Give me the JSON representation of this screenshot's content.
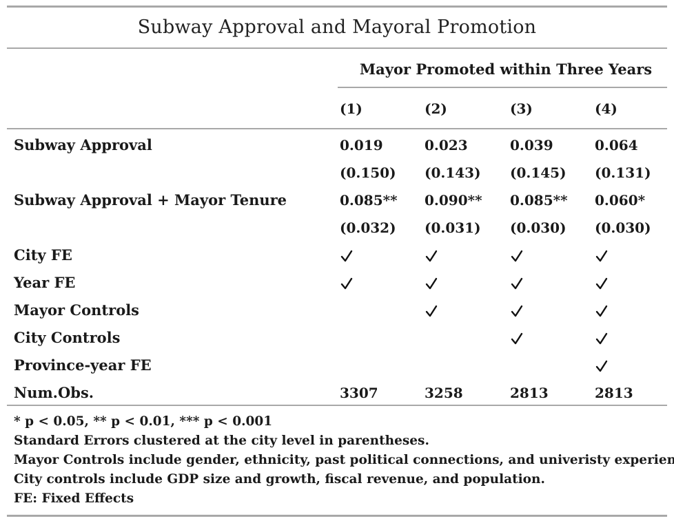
{
  "table": {
    "title": "Subway Approval and Mayoral Promotion",
    "dependent_header": "Mayor Promoted within Three Years",
    "columns": [
      "(1)",
      "(2)",
      "(3)",
      "(4)"
    ],
    "rows": [
      {
        "label": "Subway Approval",
        "values": [
          "0.019",
          "0.023",
          "0.039",
          "0.064"
        ]
      },
      {
        "label": "",
        "values": [
          "(0.150)",
          "(0.143)",
          "(0.145)",
          "(0.131)"
        ]
      },
      {
        "label": "Subway Approval + Mayor Tenure",
        "values": [
          "0.085**",
          "0.090**",
          "0.085**",
          "0.060*"
        ]
      },
      {
        "label": "",
        "values": [
          "(0.032)",
          "(0.031)",
          "(0.030)",
          "(0.030)"
        ]
      },
      {
        "label": "City FE",
        "checks": [
          true,
          true,
          true,
          true
        ]
      },
      {
        "label": "Year FE",
        "checks": [
          true,
          true,
          true,
          true
        ]
      },
      {
        "label": "Mayor Controls",
        "checks": [
          false,
          true,
          true,
          true
        ]
      },
      {
        "label": "City Controls",
        "checks": [
          false,
          false,
          true,
          true
        ]
      },
      {
        "label": "Province-year FE",
        "checks": [
          false,
          false,
          false,
          true
        ]
      },
      {
        "label": "Num.Obs.",
        "values": [
          "3307",
          "3258",
          "2813",
          "2813"
        ]
      }
    ],
    "check_mark_icon": "check-mark-icon",
    "notes": [
      "* p < 0.05, ** p < 0.01, *** p < 0.001",
      "Standard Errors clustered at the city level in parentheses.",
      "Mayor Controls include gender, ethnicity, past political connections, and univeristy experience.",
      "City controls include GDP size and growth, fiscal revenue, and population.",
      "FE: Fixed Effects"
    ]
  }
}
